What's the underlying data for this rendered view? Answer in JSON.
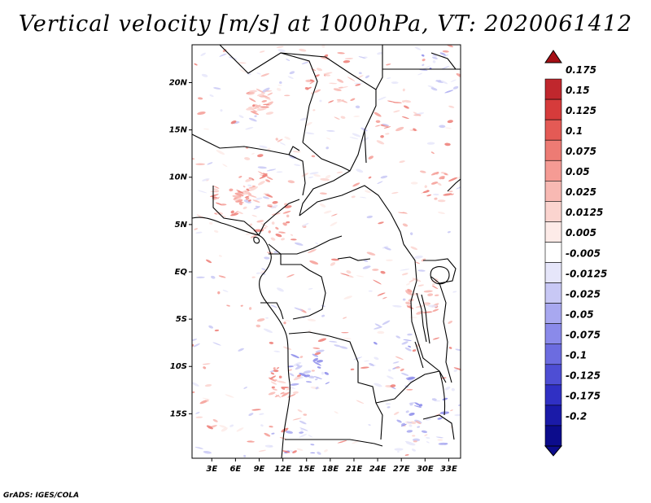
{
  "title": "Vertical velocity [m/s] at 1000hPa, VT: 2020061412",
  "credit": "GrADS: IGES/COLA",
  "map": {
    "lat_ticks": [
      "20N",
      "15N",
      "10N",
      "5N",
      "EQ",
      "5S",
      "10S",
      "15S"
    ],
    "lon_ticks": [
      "3E",
      "6E",
      "9E",
      "12E",
      "15E",
      "18E",
      "21E",
      "24E",
      "27E",
      "30E",
      "33E"
    ],
    "lat_values": [
      20,
      15,
      10,
      5,
      0,
      -5,
      -10,
      -15
    ],
    "lon_values": [
      3,
      6,
      9,
      12,
      15,
      18,
      21,
      24,
      27,
      30,
      33
    ],
    "extent": {
      "lon_min": 0.5,
      "lon_max": 34.5,
      "lat_min": -19.7,
      "lat_max": 24.0
    }
  },
  "colorbar": {
    "labels": [
      "0.175",
      "0.15",
      "0.125",
      "0.1",
      "0.075",
      "0.05",
      "0.025",
      "0.0125",
      "0.005",
      "-0.005",
      "-0.0125",
      "-0.025",
      "-0.05",
      "-0.075",
      "-0.1",
      "-0.125",
      "-0.175",
      "-0.2"
    ],
    "colors": [
      "#a50f15",
      "#c0272d",
      "#d63b3b",
      "#e45a55",
      "#ed7b74",
      "#f59b94",
      "#f8b9b3",
      "#fbd4cf",
      "#fdebe8",
      "#ffffff",
      "#e6e6fa",
      "#c8c8f5",
      "#a8a8f0",
      "#8a8aea",
      "#6c6ce0",
      "#4e4ed4",
      "#3030c4",
      "#1a1aa8",
      "#0c0c8c"
    ],
    "top_color": "#a50f15",
    "bottom_color": "#0c0c8c"
  }
}
